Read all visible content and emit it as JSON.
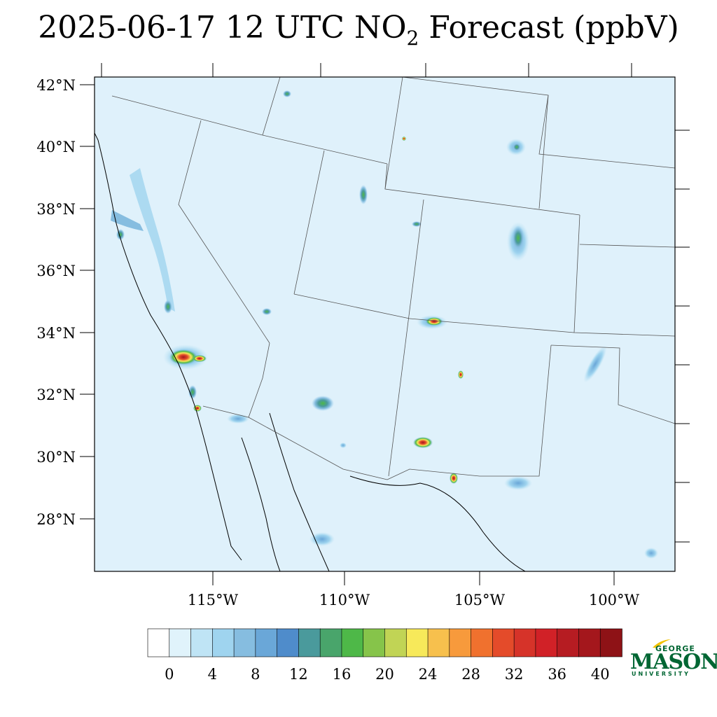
{
  "title": {
    "prefix": "2025-06-17 12 UTC NO",
    "subscript": "2",
    "suffix": " Forecast (ppbV)"
  },
  "map": {
    "lat_labels": [
      "42°N",
      "40°N",
      "38°N",
      "36°N",
      "34°N",
      "32°N",
      "30°N",
      "28°N"
    ],
    "lon_labels": [
      "115°W",
      "110°W",
      "105°W",
      "100°W"
    ],
    "background_color": "#dff1fb",
    "ocean_color": "#d6ecf7"
  },
  "colorbar": {
    "labels": [
      "0",
      "4",
      "8",
      "12",
      "16",
      "20",
      "24",
      "28",
      "32",
      "36",
      "40"
    ],
    "colors": [
      "#ffffff",
      "#e0f3fb",
      "#bfe4f5",
      "#9fd4ef",
      "#86bde0",
      "#6aa7d8",
      "#4f8ccb",
      "#4a9a9c",
      "#49a56b",
      "#4eb848",
      "#86c44a",
      "#c1d455",
      "#f7e95a",
      "#f7c04d",
      "#f79a3c",
      "#f0712e",
      "#e44b2a",
      "#d63329",
      "#d12127",
      "#b61c22",
      "#a4171c",
      "#8e1216"
    ]
  },
  "logo": {
    "line1": "GEORGE",
    "line2": "MASON",
    "line3": "UNIVERSITY",
    "color": "#006633",
    "accent": "#f2c200"
  }
}
